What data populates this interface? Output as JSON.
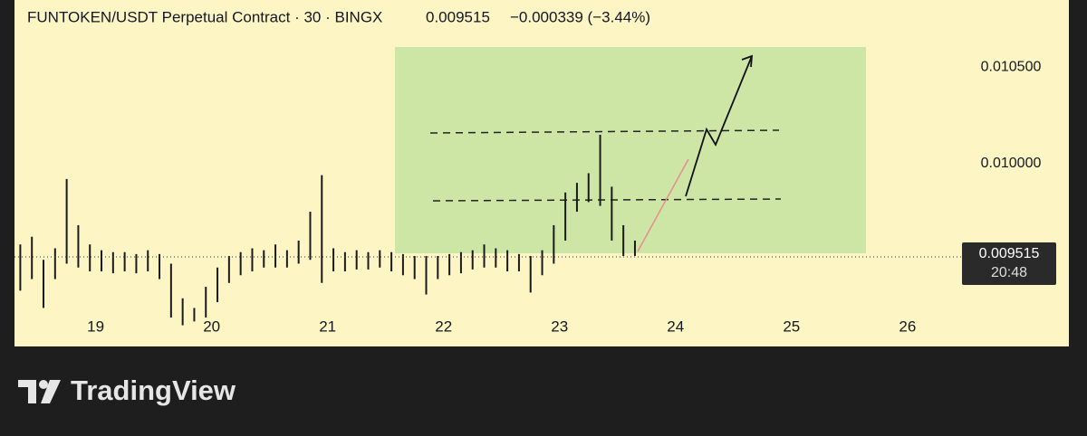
{
  "chart_data": {
    "type": "ohlc",
    "title": "FUNTOKEN/USDT Perpetual Contract · 30 · BINGX",
    "last_price": 0.009515,
    "change_label": "−0.000339 (−3.44%)",
    "last_price_time": "20:48",
    "color": "#1a1a1a",
    "x": [
      18.35,
      18.45,
      18.55,
      18.65,
      18.75,
      18.85,
      18.95,
      19.05,
      19.15,
      19.25,
      19.35,
      19.45,
      19.55,
      19.65,
      19.75,
      19.85,
      19.95,
      20.05,
      20.15,
      20.25,
      20.35,
      20.45,
      20.55,
      20.65,
      20.75,
      20.85,
      20.95,
      21.05,
      21.15,
      21.25,
      21.35,
      21.45,
      21.55,
      21.65,
      21.75,
      21.85,
      21.95,
      22.05,
      22.15,
      22.25,
      22.35,
      22.45,
      22.55,
      22.65,
      22.75,
      22.85,
      22.95,
      23.05,
      23.15,
      23.25,
      23.35,
      23.45,
      23.55,
      23.65
    ],
    "high": [
      0.00958,
      0.00962,
      0.0095,
      0.00956,
      0.00992,
      0.00968,
      0.00958,
      0.00955,
      0.00954,
      0.00954,
      0.00953,
      0.00955,
      0.00953,
      0.00948,
      0.0093,
      0.00925,
      0.00936,
      0.00946,
      0.00952,
      0.00954,
      0.00956,
      0.00955,
      0.00958,
      0.00955,
      0.0096,
      0.00975,
      0.00994,
      0.00956,
      0.00954,
      0.00955,
      0.00954,
      0.00955,
      0.00954,
      0.00953,
      0.00952,
      0.00952,
      0.00952,
      0.00953,
      0.00954,
      0.00955,
      0.00958,
      0.00956,
      0.00955,
      0.00953,
      0.00952,
      0.00955,
      0.00968,
      0.00985,
      0.0099,
      0.00995,
      0.01015,
      0.00988,
      0.00968,
      0.0096
    ],
    "low": [
      0.00934,
      0.0094,
      0.00925,
      0.0094,
      0.00948,
      0.00946,
      0.00944,
      0.00944,
      0.00943,
      0.00944,
      0.00943,
      0.00944,
      0.0094,
      0.0092,
      0.00916,
      0.00918,
      0.0092,
      0.00928,
      0.00938,
      0.00942,
      0.00944,
      0.00946,
      0.00946,
      0.00946,
      0.00948,
      0.0095,
      0.00938,
      0.00944,
      0.00944,
      0.00945,
      0.00945,
      0.00946,
      0.00944,
      0.00942,
      0.0094,
      0.00932,
      0.0094,
      0.00942,
      0.00943,
      0.00945,
      0.00946,
      0.00946,
      0.00944,
      0.00944,
      0.00933,
      0.00942,
      0.00948,
      0.0096,
      0.00975,
      0.0098,
      0.00978,
      0.0096,
      0.00952,
      0.00952
    ],
    "xlim": [
      18.3,
      26.47
    ],
    "xticks": [
      19,
      20,
      21,
      22,
      23,
      24,
      25,
      26
    ],
    "ylim": [
      0.00905,
      0.01085
    ],
    "yticks": [
      {
        "value": 0.0105,
        "label": "0.010500"
      },
      {
        "value": 0.01,
        "label": "0.010000"
      }
    ]
  },
  "footer": {
    "brand": "TradingView"
  }
}
